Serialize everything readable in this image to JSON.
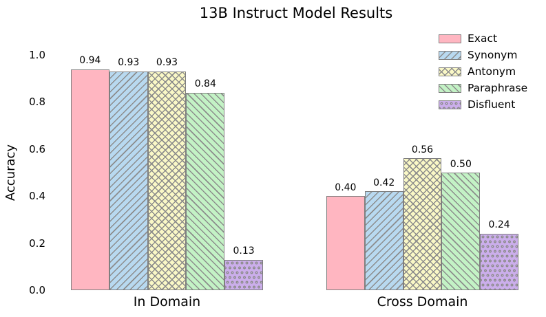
{
  "chart_data": {
    "type": "bar",
    "title": "13B Instruct Model Results",
    "ylabel": "Accuracy",
    "xlabel": "",
    "categories": [
      "In Domain",
      "Cross Domain"
    ],
    "series": [
      {
        "name": "Exact",
        "color": "#FFB6C1",
        "hatch": "none",
        "values": [
          0.94,
          0.4
        ]
      },
      {
        "name": "Synonym",
        "color": "#B8D9F0",
        "hatch": "forward-diagonal",
        "values": [
          0.93,
          0.42
        ]
      },
      {
        "name": "Antonym",
        "color": "#FAF8C6",
        "hatch": "diagonal-cross",
        "values": [
          0.93,
          0.56
        ]
      },
      {
        "name": "Paraphrase",
        "color": "#C3F2C5",
        "hatch": "back-diagonal",
        "values": [
          0.84,
          0.5
        ]
      },
      {
        "name": "Disfluent",
        "color": "#CBAEEB",
        "hatch": "dots",
        "values": [
          0.13,
          0.24
        ]
      }
    ],
    "bar_labels": [
      [
        "0.94",
        "0.93",
        "0.93",
        "0.84",
        "0.13"
      ],
      [
        "0.40",
        "0.42",
        "0.56",
        "0.50",
        "0.24"
      ]
    ],
    "ylim": [
      0.0,
      1.0
    ],
    "yticks": [
      0.0,
      0.2,
      0.4,
      0.6,
      0.8,
      1.0
    ],
    "grid": false,
    "frame": false,
    "edge_color": "#7F7F7F",
    "hatch_color": "#8C8C8C",
    "legend": {
      "position": "upper-right",
      "entries": [
        "Exact",
        "Synonym",
        "Antonym",
        "Paraphrase",
        "Disfluent"
      ]
    }
  }
}
